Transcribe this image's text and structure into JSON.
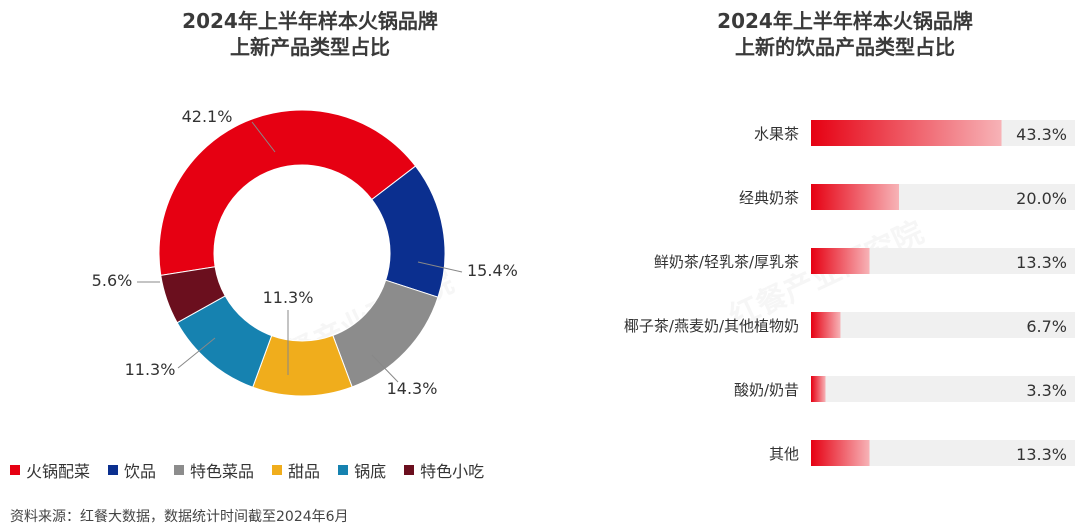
{
  "left": {
    "title_line1": "2024年上半年样本火锅品牌",
    "title_line2": "上新产品类型占比"
  },
  "right": {
    "title_line1": "2024年上半年样本火锅品牌",
    "title_line2": "上新的饮品产品类型占比"
  },
  "source": "资料来源：红餐大数据，数据统计时间截至2024年6月",
  "watermark": "红餐产业研究院",
  "chart_data": [
    {
      "type": "pie",
      "donut": true,
      "title": "2024年上半年样本火锅品牌上新产品类型占比",
      "legend_position": "bottom",
      "slices": [
        {
          "name": "火锅配菜",
          "value": 42.1,
          "label": "42.1%",
          "color": "#e60012"
        },
        {
          "name": "饮品",
          "value": 15.4,
          "label": "15.4%",
          "color": "#0b2f8f"
        },
        {
          "name": "特色菜品",
          "value": 14.3,
          "label": "14.3%",
          "color": "#8c8c8c"
        },
        {
          "name": "甜品",
          "value": 11.3,
          "label": "11.3%",
          "color": "#f0ad1c"
        },
        {
          "name": "锅底",
          "value": 11.3,
          "label": "11.3%",
          "color": "#1682b0"
        },
        {
          "name": "特色小吃",
          "value": 5.6,
          "label": "5.6%",
          "color": "#6b0f1e"
        }
      ]
    },
    {
      "type": "bar",
      "orientation": "horizontal",
      "title": "2024年上半年样本火锅品牌上新的饮品产品类型占比",
      "categories": [
        "水果茶",
        "经典奶茶",
        "鲜奶茶/轻乳茶/厚乳茶",
        "椰子茶/燕麦奶/其他植物奶",
        "酸奶/奶昔",
        "其他"
      ],
      "values": [
        43.3,
        20.0,
        13.3,
        6.7,
        3.3,
        13.3
      ],
      "value_labels": [
        "43.3%",
        "20.0%",
        "13.3%",
        "6.7%",
        "3.3%",
        "13.3%"
      ],
      "xlim": [
        0,
        60
      ],
      "bar_color": "#e60012"
    }
  ]
}
